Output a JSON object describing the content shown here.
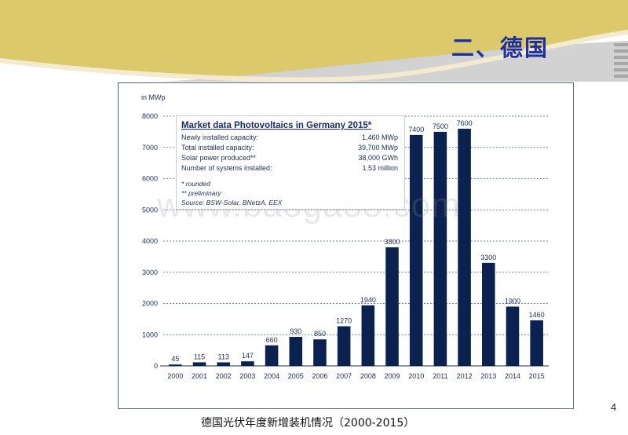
{
  "slide": {
    "title": "二、德国",
    "caption": "德国光伏年度新增装机情况（2000-2015）",
    "page_number": "4",
    "watermark": "www.baogao8.com"
  },
  "colors": {
    "bar": "#0b2150",
    "header_band": "#dcc96b",
    "title_text": "#1f2f9e",
    "grid": "#4a5a8a"
  },
  "info_box": {
    "title": "Market data Photovoltaics in Germany 2015*",
    "rows": [
      {
        "label": "Newly installed capacity:",
        "value": "1,460 MWp"
      },
      {
        "label": "Total installed capacity:",
        "value": "39,700 MWp"
      },
      {
        "label": "Solar power produced**",
        "value": "38,000 GWh"
      },
      {
        "label": "Number of systems installed:",
        "value": "1.53 million"
      }
    ],
    "notes": [
      "* rounded",
      "** preliminary",
      "Source: BSW-Solar, BNetzA, EEX"
    ]
  },
  "chart_data": {
    "type": "bar",
    "ylabel": "in MWp",
    "ylim": [
      0,
      8000
    ],
    "yticks": [
      0,
      1000,
      2000,
      3000,
      4000,
      5000,
      6000,
      7000,
      8000
    ],
    "grid": true,
    "categories": [
      "2000",
      "2001",
      "2002",
      "2003",
      "2004",
      "2005",
      "2006",
      "2007",
      "2008",
      "2009",
      "2010",
      "2011",
      "2012",
      "2013",
      "2014",
      "2015"
    ],
    "values": [
      45,
      115,
      113,
      147,
      660,
      930,
      850,
      1270,
      1940,
      3800,
      7400,
      7500,
      7600,
      3300,
      1900,
      1460
    ],
    "data_labels": [
      "45",
      "115",
      "113",
      "147",
      "660",
      "930",
      "850",
      "1270",
      "1940",
      "3800",
      "7400",
      "7500",
      "7600",
      "3300",
      "1900",
      "1460"
    ]
  }
}
